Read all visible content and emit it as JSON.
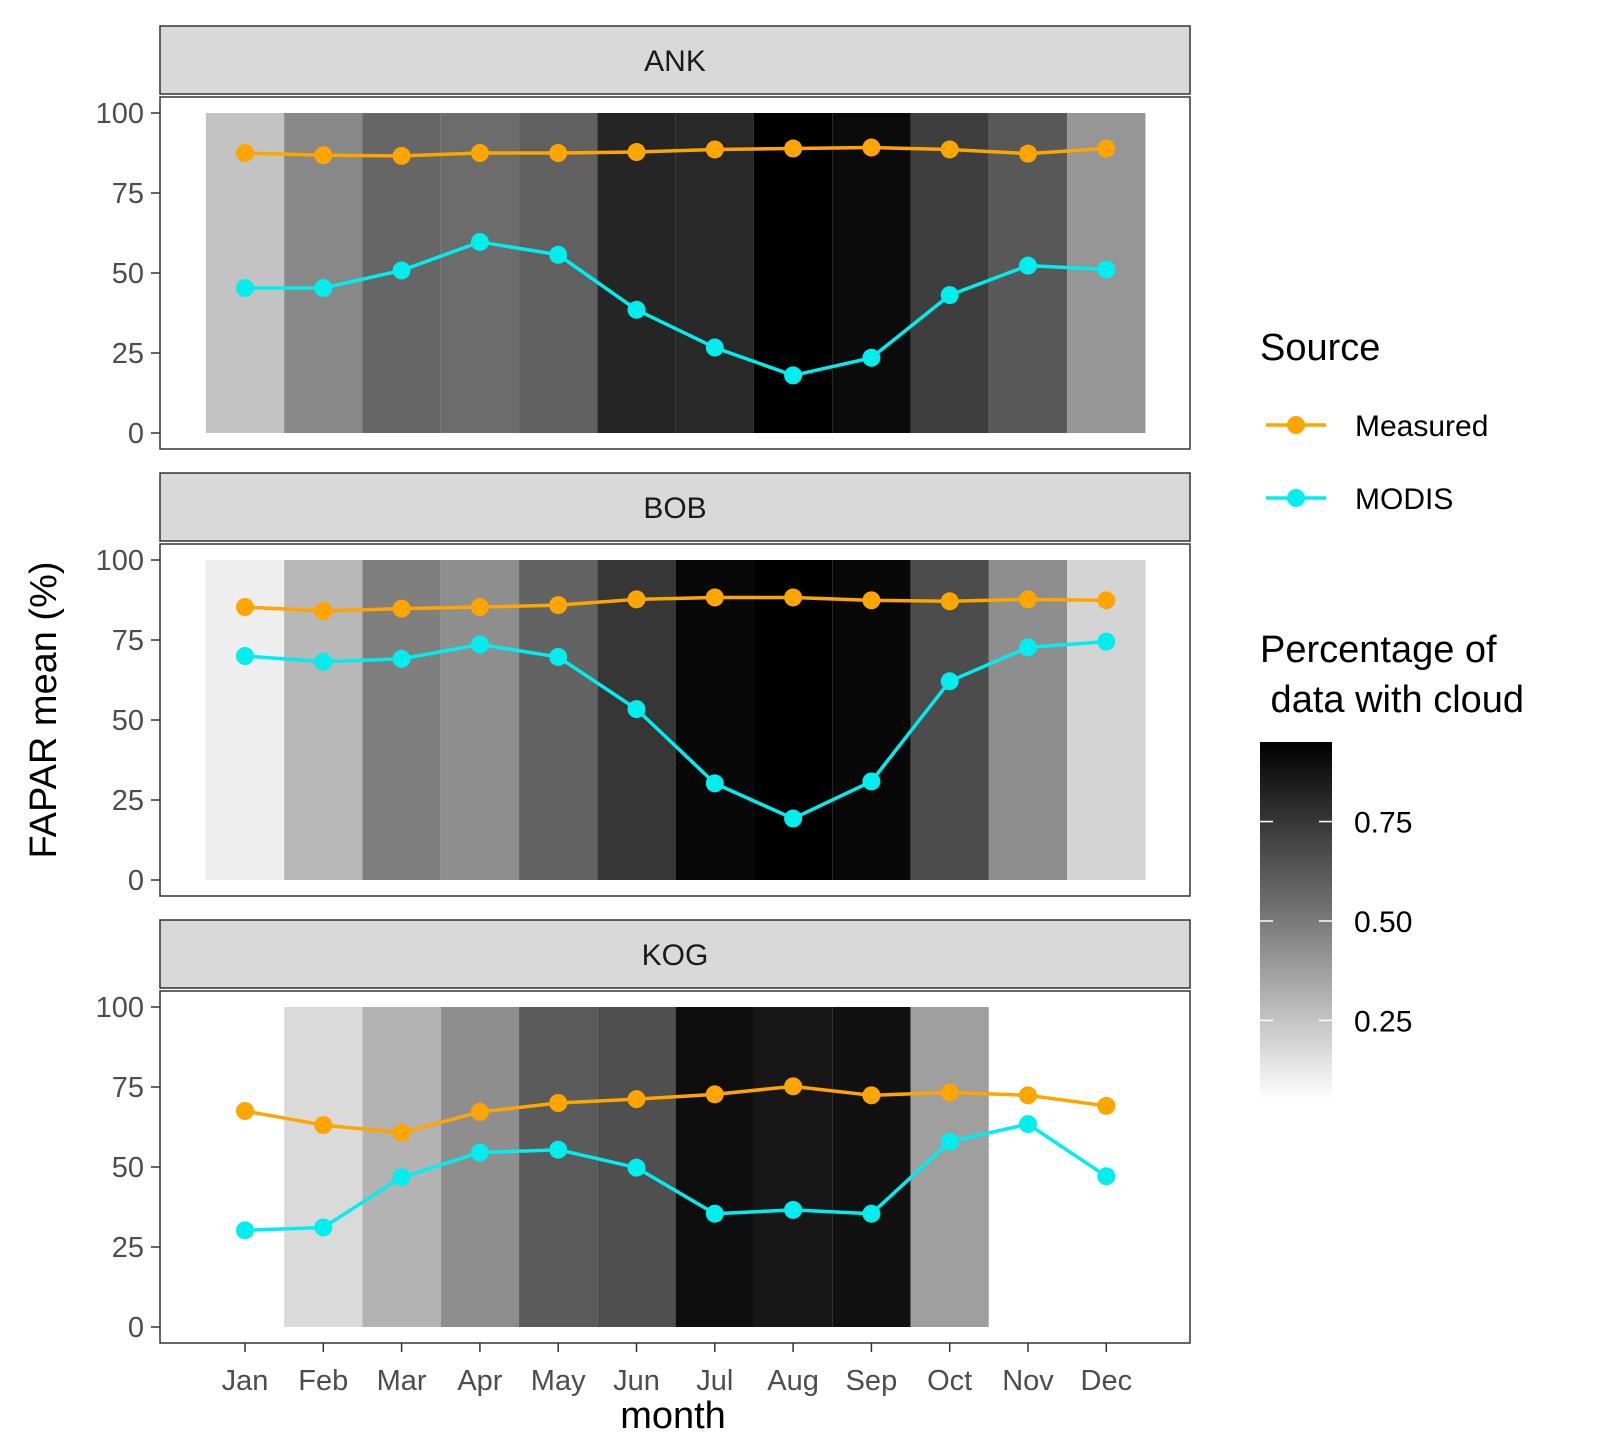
{
  "chart_data": {
    "type": "line",
    "xlabel": "month",
    "ylabel": "FAPAR mean (%)",
    "ylim": [
      0,
      100
    ],
    "yticks": [
      0,
      25,
      50,
      75,
      100
    ],
    "categories": [
      "Jan",
      "Feb",
      "Mar",
      "Apr",
      "May",
      "Jun",
      "Jul",
      "Aug",
      "Sep",
      "Oct",
      "Nov",
      "Dec"
    ],
    "colors": {
      "Measured": "#FFA500",
      "MODIS": "#00EEEE"
    },
    "legend": {
      "source_title": "Source",
      "source_items": [
        "Measured",
        "MODIS"
      ],
      "fill_title_line1": "Percentage of",
      "fill_title_line2": " data with cloud",
      "fill_breaks": [
        "0.75",
        "0.50",
        "0.25"
      ],
      "fill_break_values": [
        0.75,
        0.5,
        0.25
      ],
      "fill_range": [
        0.05,
        0.95
      ]
    },
    "panels": [
      {
        "name": "ANK",
        "cloud": [
          0.26,
          0.47,
          0.59,
          0.57,
          0.61,
          0.82,
          0.81,
          0.95,
          0.91,
          0.73,
          0.64,
          0.42
        ],
        "series": [
          {
            "name": "Measured",
            "values": [
              87.5,
              86.8,
              86.6,
              87.5,
              87.5,
              87.8,
              88.6,
              88.9,
              89.2,
              88.6,
              87.3,
              88.9
            ]
          },
          {
            "name": "MODIS",
            "values": [
              45.3,
              45.3,
              50.8,
              59.7,
              55.7,
              38.5,
              26.7,
              18.0,
              23.5,
              43.1,
              52.3,
              51.1
            ]
          }
        ]
      },
      {
        "name": "BOB",
        "cloud": [
          0.11,
          0.3,
          0.5,
          0.45,
          0.6,
          0.76,
          0.92,
          0.99,
          0.92,
          0.68,
          0.45,
          0.2
        ],
        "series": [
          {
            "name": "Measured",
            "values": [
              85.3,
              84.1,
              84.8,
              85.3,
              85.9,
              87.7,
              88.3,
              88.3,
              87.4,
              87.1,
              87.7,
              87.4
            ]
          },
          {
            "name": "MODIS",
            "values": [
              70.0,
              68.2,
              69.1,
              73.6,
              69.7,
              53.4,
              30.2,
              19.2,
              30.8,
              62.1,
              72.7,
              74.5
            ]
          }
        ]
      },
      {
        "name": "KOG",
        "cloud": [
          0.03,
          0.18,
          0.32,
          0.45,
          0.63,
          0.67,
          0.9,
          0.87,
          0.89,
          0.39,
          0.05,
          null
        ],
        "series": [
          {
            "name": "Measured",
            "values": [
              67.5,
              63.1,
              60.7,
              67.2,
              70.0,
              71.2,
              72.7,
              75.2,
              72.4,
              73.3,
              72.4,
              69.1
            ]
          },
          {
            "name": "MODIS",
            "values": [
              30.2,
              31.1,
              46.8,
              54.5,
              55.4,
              49.8,
              35.4,
              36.6,
              35.4,
              57.9,
              63.4,
              47.1
            ]
          }
        ]
      }
    ]
  }
}
